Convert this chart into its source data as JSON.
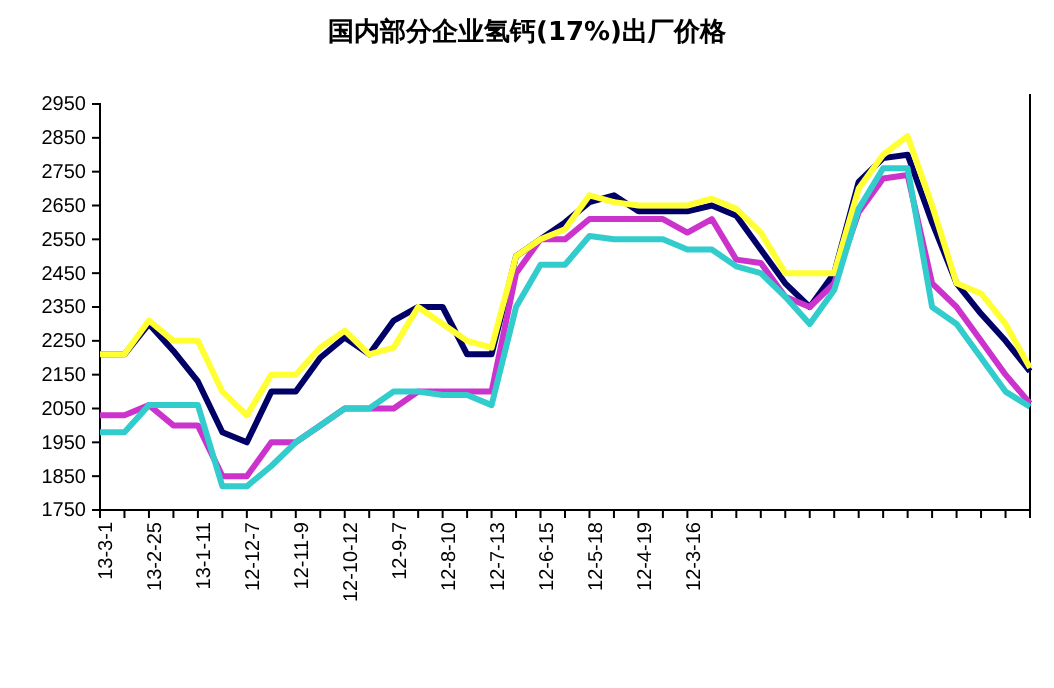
{
  "chart_data": {
    "type": "line",
    "title": "国内部分企业氢钙(17%)出厂价格",
    "categories": [
      "13-3-1",
      null,
      "13-2-25",
      null,
      "13-1-11",
      null,
      "12-12-7",
      null,
      "12-11-9",
      null,
      "12-10-12",
      null,
      "12-9-7",
      null,
      "12-8-10",
      null,
      "12-7-13",
      null,
      "12-6-15",
      null,
      "12-5-18",
      null,
      "12-4-19",
      null,
      "12-3-16",
      null,
      null,
      null,
      null,
      null,
      null,
      null,
      null,
      null,
      null,
      null,
      null,
      null,
      null
    ],
    "series": [
      {
        "color": "#000066",
        "values": [
          2210,
          2210,
          2300,
          2220,
          2130,
          1980,
          1950,
          2100,
          2100,
          2200,
          2260,
          2210,
          2310,
          2350,
          2350,
          2210,
          2210,
          2500,
          2550,
          2600,
          2660,
          2680,
          2633,
          2633,
          2633,
          2650,
          2620,
          2520,
          2420,
          2350,
          2450,
          2720,
          2790,
          2800,
          2600,
          2420,
          2330,
          2250,
          2160
        ]
      },
      {
        "color": "#cc33cc",
        "values": [
          2030,
          2030,
          2060,
          2000,
          2000,
          1850,
          1850,
          1950,
          1950,
          2000,
          2050,
          2050,
          2050,
          2100,
          2100,
          2100,
          2100,
          2450,
          2550,
          2550,
          2610,
          2610,
          2610,
          2610,
          2570,
          2610,
          2490,
          2480,
          2380,
          2350,
          2420,
          2630,
          2730,
          2740,
          2420,
          2350,
          2250,
          2150,
          2065
        ]
      },
      {
        "color": "#ffff33",
        "values": [
          2210,
          2210,
          2310,
          2250,
          2250,
          2100,
          2030,
          2150,
          2150,
          2230,
          2280,
          2210,
          2230,
          2350,
          2300,
          2250,
          2230,
          2500,
          2550,
          2580,
          2680,
          2660,
          2650,
          2650,
          2650,
          2670,
          2640,
          2570,
          2450,
          2450,
          2450,
          2700,
          2800,
          2855,
          2650,
          2420,
          2390,
          2300,
          2170
        ]
      },
      {
        "color": "#33cccc",
        "values": [
          1980,
          1980,
          2060,
          2060,
          2060,
          1820,
          1820,
          1880,
          1950,
          2000,
          2050,
          2050,
          2100,
          2100,
          2090,
          2090,
          2060,
          2350,
          2475,
          2475,
          2560,
          2550,
          2550,
          2550,
          2520,
          2520,
          2470,
          2450,
          2380,
          2300,
          2400,
          2640,
          2760,
          2760,
          2350,
          2300,
          2200,
          2100,
          2055
        ]
      }
    ],
    "ylim": [
      1750,
      2950
    ],
    "yticks": [
      1750,
      1850,
      1950,
      2050,
      2150,
      2250,
      2350,
      2450,
      2550,
      2650,
      2750,
      2850,
      2950
    ],
    "grid": false,
    "line_style": "solid",
    "marker": "none"
  }
}
